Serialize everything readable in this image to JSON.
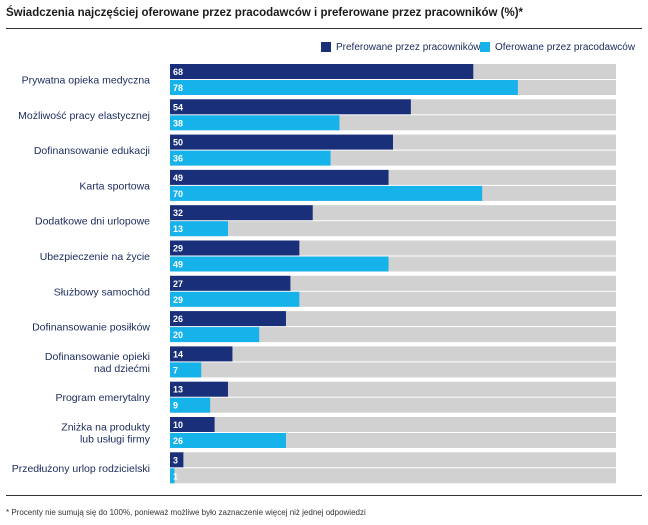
{
  "title": "Świadczenia najczęściej oferowane przez pracodawców i preferowane przez pracowników (%)*",
  "footnote": "* Procenty nie sumują się do 100%, ponieważ możliwe było zaznaczenie więcej niż jednej odpowiedzi",
  "colors": {
    "preferred": "#1a2f7a",
    "offered": "#16b2ea",
    "track": "#d1d1d1",
    "label": "#1a2a5c"
  },
  "chart_data": {
    "type": "bar",
    "orientation": "horizontal",
    "title": "Świadczenia najczęściej oferowane przez pracodawców i preferowane przez pracowników (%)*",
    "xlim": [
      0,
      100
    ],
    "legend_position": "top-right",
    "categories": [
      [
        "Prywatna opieka medyczna"
      ],
      [
        "Możliwość pracy elastycznej"
      ],
      [
        "Dofinansowanie edukacji"
      ],
      [
        "Karta sportowa"
      ],
      [
        "Dodatkowe dni urlopowe"
      ],
      [
        "Ubezpieczenie na życie"
      ],
      [
        "Służbowy samochód"
      ],
      [
        "Dofinansowanie posiłków"
      ],
      [
        "Dofinansowanie opieki",
        "nad dziećmi"
      ],
      [
        "Program emerytalny"
      ],
      [
        "Zniżka na produkty",
        "lub usługi firmy"
      ],
      [
        "Przedłużony urlop rodzicielski"
      ]
    ],
    "series": [
      {
        "name": "Preferowane przez pracowników",
        "values": [
          68,
          54,
          50,
          49,
          32,
          29,
          27,
          26,
          14,
          13,
          10,
          3
        ]
      },
      {
        "name": "Oferowane przez pracodawców",
        "values": [
          78,
          38,
          36,
          70,
          13,
          49,
          29,
          20,
          7,
          9,
          26,
          1
        ]
      }
    ]
  }
}
